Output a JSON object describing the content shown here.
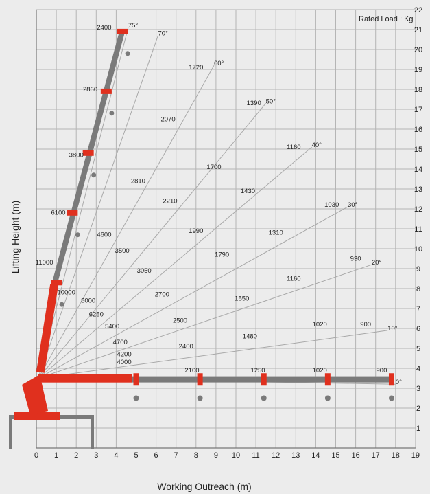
{
  "chart_data": {
    "type": "line",
    "title": "",
    "legend_note": {
      "label": "Rated Load",
      "unit": "Kg"
    },
    "xlabel": "Working Outreach (m)",
    "ylabel": "Lifting Height (m)",
    "xlim": [
      0,
      19
    ],
    "ylim": [
      0,
      22
    ],
    "x_ticks": [
      "0",
      "1",
      "2",
      "3",
      "4",
      "5",
      "6",
      "7",
      "8",
      "9",
      "10",
      "11",
      "12",
      "13",
      "14",
      "15",
      "16",
      "17",
      "18",
      "19"
    ],
    "y_ticks": [
      "1",
      "2",
      "3",
      "4",
      "5",
      "6",
      "7",
      "8",
      "9",
      "10",
      "11",
      "12",
      "13",
      "14",
      "15",
      "16",
      "17",
      "18",
      "19",
      "20",
      "21",
      "22"
    ],
    "angle_lines": [
      {
        "angle": "75°",
        "label_xy": [
          4.6,
          21.1
        ]
      },
      {
        "angle": "70°",
        "label_xy": [
          6.1,
          20.7
        ]
      },
      {
        "angle": "60°",
        "label_xy": [
          8.9,
          19.2
        ]
      },
      {
        "angle": "50°",
        "label_xy": [
          11.5,
          17.3
        ]
      },
      {
        "angle": "40°",
        "label_xy": [
          13.8,
          15.1
        ]
      },
      {
        "angle": "30°",
        "label_xy": [
          15.6,
          12.1
        ]
      },
      {
        "angle": "20°",
        "label_xy": [
          16.8,
          9.2
        ]
      },
      {
        "angle": "10°",
        "label_xy": [
          17.6,
          5.9
        ]
      },
      {
        "angle": "0°",
        "label_xy": [
          18.0,
          3.2
        ]
      }
    ],
    "capacity_labels": [
      {
        "value": "2400",
        "x": 3.4,
        "y": 21.0
      },
      {
        "value": "1720",
        "x": 8.0,
        "y": 19.0
      },
      {
        "value": "1390",
        "x": 10.9,
        "y": 17.2
      },
      {
        "value": "1160",
        "x": 12.9,
        "y": 15.0
      },
      {
        "value": "1030",
        "x": 14.8,
        "y": 12.1
      },
      {
        "value": "930",
        "x": 16.0,
        "y": 9.4
      },
      {
        "value": "900",
        "x": 16.5,
        "y": 6.1
      },
      {
        "value": "900",
        "x": 17.3,
        "y": 3.8
      },
      {
        "value": "2860",
        "x": 2.7,
        "y": 17.9
      },
      {
        "value": "2070",
        "x": 6.6,
        "y": 16.4
      },
      {
        "value": "1700",
        "x": 8.9,
        "y": 14.0
      },
      {
        "value": "1430",
        "x": 10.6,
        "y": 12.8
      },
      {
        "value": "1310",
        "x": 12.0,
        "y": 10.7
      },
      {
        "value": "1160",
        "x": 12.9,
        "y": 8.4
      },
      {
        "value": "1020",
        "x": 14.2,
        "y": 6.1
      },
      {
        "value": "1020",
        "x": 14.2,
        "y": 3.8
      },
      {
        "value": "3800",
        "x": 2.0,
        "y": 14.6
      },
      {
        "value": "2810",
        "x": 5.1,
        "y": 13.3
      },
      {
        "value": "2210",
        "x": 6.7,
        "y": 12.3
      },
      {
        "value": "1990",
        "x": 8.0,
        "y": 10.8
      },
      {
        "value": "1790",
        "x": 9.3,
        "y": 9.6
      },
      {
        "value": "1550",
        "x": 10.3,
        "y": 7.4
      },
      {
        "value": "1480",
        "x": 10.7,
        "y": 5.5
      },
      {
        "value": "1250",
        "x": 11.1,
        "y": 3.8
      },
      {
        "value": "6100",
        "x": 1.1,
        "y": 11.7
      },
      {
        "value": "4600",
        "x": 3.4,
        "y": 10.6
      },
      {
        "value": "3500",
        "x": 4.3,
        "y": 9.8
      },
      {
        "value": "3050",
        "x": 5.4,
        "y": 8.8
      },
      {
        "value": "2700",
        "x": 6.3,
        "y": 7.6
      },
      {
        "value": "2500",
        "x": 7.2,
        "y": 6.3
      },
      {
        "value": "2400",
        "x": 7.5,
        "y": 5.0
      },
      {
        "value": "2100",
        "x": 7.8,
        "y": 3.8
      },
      {
        "value": "11000",
        "x": 0.4,
        "y": 9.2
      },
      {
        "value": "10000",
        "x": 1.5,
        "y": 7.7
      },
      {
        "value": "8000",
        "x": 2.6,
        "y": 7.3
      },
      {
        "value": "6250",
        "x": 3.0,
        "y": 6.6
      },
      {
        "value": "5400",
        "x": 3.8,
        "y": 6.0
      },
      {
        "value": "4700",
        "x": 4.2,
        "y": 5.2
      },
      {
        "value": "4200",
        "x": 4.4,
        "y": 4.6
      },
      {
        "value": "4000",
        "x": 4.4,
        "y": 4.2
      }
    ]
  }
}
